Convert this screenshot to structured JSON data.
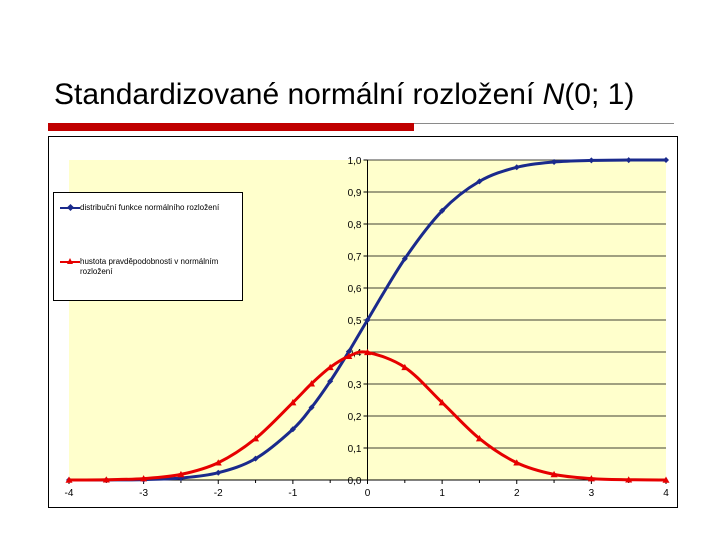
{
  "slide": {
    "title_text": "Standardizované normální rozložení ",
    "title_italic": "N",
    "title_suffix": "(0; 1)"
  },
  "colors": {
    "cdf": "#1a2a8c",
    "pdf": "#e60000",
    "plot_background": "#ffffcc",
    "grid": "#000000",
    "title_accent": "#c00000"
  },
  "chart_data": {
    "type": "line",
    "title": "",
    "xlabel": "",
    "ylabel": "",
    "xlim": [
      -4,
      4
    ],
    "ylim": [
      0,
      1
    ],
    "x_ticks": [
      "-4",
      "-3",
      "-2",
      "-1",
      "0",
      "1",
      "2",
      "3",
      "4"
    ],
    "y_ticks": [
      "0,0",
      "0,1",
      "0,2",
      "0,3",
      "0,4",
      "0,5",
      "0,6",
      "0,7",
      "0,8",
      "0,9",
      "1,0"
    ],
    "y_axis_position": "x = 0",
    "grid": "horizontal",
    "legend_position": "left",
    "x": [
      -4,
      -3.5,
      -3,
      -2.5,
      -2,
      -1.5,
      -1,
      -0.75,
      -0.5,
      -0.25,
      0,
      0.5,
      1,
      1.5,
      2,
      2.5,
      3,
      3.5,
      4
    ],
    "series": [
      {
        "name": "distribuční funkce normálního rozložení",
        "color": "#1a2a8c",
        "marker": "diamond",
        "values": [
          0.0,
          0.0002,
          0.0013,
          0.0062,
          0.0228,
          0.0668,
          0.1587,
          0.2266,
          0.3085,
          0.4013,
          0.5,
          0.6915,
          0.8413,
          0.9332,
          0.9772,
          0.9938,
          0.9987,
          0.9998,
          1.0
        ]
      },
      {
        "name": "hustota pravděpodobnosti v normálním rozložení",
        "color": "#e60000",
        "marker": "triangle",
        "values": [
          0.0001,
          0.0009,
          0.0044,
          0.0175,
          0.054,
          0.1295,
          0.242,
          0.3011,
          0.3521,
          0.3867,
          0.3989,
          0.3521,
          0.242,
          0.1295,
          0.054,
          0.0175,
          0.0044,
          0.0009,
          0.0001
        ]
      }
    ]
  }
}
